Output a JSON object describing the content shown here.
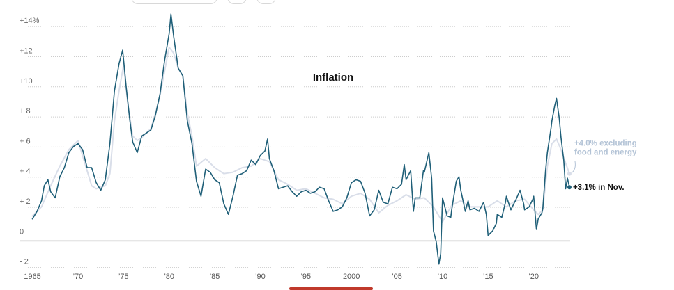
{
  "colors": {
    "headline": "#1f5f78",
    "core": "#d9dee9",
    "zero_line": "#bbbbbb",
    "grid": "#cccccc",
    "annotation_core": "#b3c3d6",
    "annotation_headline": "#111111"
  },
  "chart_data": {
    "type": "line",
    "title": "Inflation",
    "xlabel": "",
    "ylabel": "",
    "xlim": [
      1964.5,
      2024
    ],
    "ylim": [
      -2.8,
      15.3
    ],
    "grid": true,
    "x_ticks": [
      {
        "value": 1965,
        "label": "1965"
      },
      {
        "value": 1970,
        "label": "’70"
      },
      {
        "value": 1975,
        "label": "’75"
      },
      {
        "value": 1980,
        "label": "’80"
      },
      {
        "value": 1985,
        "label": "’85"
      },
      {
        "value": 1990,
        "label": "’90"
      },
      {
        "value": 1995,
        "label": "’95"
      },
      {
        "value": 2000,
        "label": "2000"
      },
      {
        "value": 2005,
        "label": "’05"
      },
      {
        "value": 2010,
        "label": "’10"
      },
      {
        "value": 2015,
        "label": "’15"
      },
      {
        "value": 2020,
        "label": "’20"
      }
    ],
    "y_ticks": [
      {
        "value": 14,
        "label": "+14%"
      },
      {
        "value": 12,
        "label": "+12"
      },
      {
        "value": 10,
        "label": "+10"
      },
      {
        "value": 8,
        "label": "+ 8"
      },
      {
        "value": 6,
        "label": "+ 6"
      },
      {
        "value": 4,
        "label": "+ 4"
      },
      {
        "value": 2,
        "label": "+ 2"
      },
      {
        "value": 0,
        "label": "0"
      },
      {
        "value": -2,
        "label": "- 2"
      }
    ],
    "series": [
      {
        "key": "core",
        "points": [
          [
            1965.0,
            1.2
          ],
          [
            1966.0,
            1.8
          ],
          [
            1967.0,
            3.2
          ],
          [
            1968.0,
            4.5
          ],
          [
            1969.0,
            5.6
          ],
          [
            1970.0,
            6.2
          ],
          [
            1971.0,
            4.2
          ],
          [
            1971.5,
            3.2
          ],
          [
            1972.0,
            3.0
          ],
          [
            1972.5,
            3.1
          ],
          [
            1973.0,
            3.2
          ],
          [
            1973.5,
            4.0
          ],
          [
            1974.0,
            7.5
          ],
          [
            1974.5,
            9.5
          ],
          [
            1975.0,
            11.2
          ],
          [
            1975.5,
            8.5
          ],
          [
            1976.0,
            6.5
          ],
          [
            1976.5,
            6.2
          ],
          [
            1977.0,
            6.4
          ],
          [
            1978.0,
            7.0
          ],
          [
            1978.5,
            8.0
          ],
          [
            1979.0,
            9.2
          ],
          [
            1979.5,
            10.8
          ],
          [
            1980.0,
            12.4
          ],
          [
            1980.5,
            12.0
          ],
          [
            1981.0,
            11.0
          ],
          [
            1981.5,
            10.5
          ],
          [
            1982.0,
            8.0
          ],
          [
            1982.5,
            6.5
          ],
          [
            1983.0,
            4.5
          ],
          [
            1984.0,
            5.0
          ],
          [
            1985.0,
            4.4
          ],
          [
            1986.0,
            4.0
          ],
          [
            1987.0,
            4.1
          ],
          [
            1988.0,
            4.4
          ],
          [
            1989.0,
            4.5
          ],
          [
            1990.0,
            5.0
          ],
          [
            1991.0,
            4.8
          ],
          [
            1991.5,
            4.2
          ],
          [
            1992.0,
            3.6
          ],
          [
            1993.0,
            3.3
          ],
          [
            1994.0,
            2.9
          ],
          [
            1995.0,
            3.0
          ],
          [
            1996.0,
            2.7
          ],
          [
            1997.0,
            2.4
          ],
          [
            1998.0,
            2.3
          ],
          [
            1999.0,
            2.0
          ],
          [
            2000.0,
            2.5
          ],
          [
            2001.0,
            2.7
          ],
          [
            2002.0,
            2.3
          ],
          [
            2003.0,
            1.4
          ],
          [
            2004.0,
            1.9
          ],
          [
            2005.0,
            2.2
          ],
          [
            2006.0,
            2.6
          ],
          [
            2007.0,
            2.3
          ],
          [
            2008.0,
            2.4
          ],
          [
            2009.0,
            1.8
          ],
          [
            2010.0,
            0.8
          ],
          [
            2011.0,
            1.9
          ],
          [
            2012.0,
            2.2
          ],
          [
            2013.0,
            1.8
          ],
          [
            2014.0,
            1.8
          ],
          [
            2015.0,
            1.8
          ],
          [
            2016.0,
            2.2
          ],
          [
            2017.0,
            1.8
          ],
          [
            2018.0,
            2.2
          ],
          [
            2019.0,
            2.3
          ],
          [
            2020.0,
            1.6
          ],
          [
            2020.5,
            1.3
          ],
          [
            2021.0,
            1.6
          ],
          [
            2021.5,
            4.5
          ],
          [
            2022.0,
            6.0
          ],
          [
            2022.5,
            6.3
          ],
          [
            2023.0,
            5.6
          ],
          [
            2023.5,
            4.7
          ],
          [
            2023.92,
            4.0
          ]
        ]
      },
      {
        "key": "headline",
        "points": [
          [
            1965.0,
            1.0
          ],
          [
            1965.5,
            1.5
          ],
          [
            1966.0,
            2.2
          ],
          [
            1966.3,
            3.2
          ],
          [
            1966.7,
            3.6
          ],
          [
            1967.0,
            2.8
          ],
          [
            1967.5,
            2.4
          ],
          [
            1968.0,
            3.8
          ],
          [
            1968.5,
            4.4
          ],
          [
            1969.0,
            5.4
          ],
          [
            1969.5,
            5.8
          ],
          [
            1970.0,
            6.0
          ],
          [
            1970.5,
            5.6
          ],
          [
            1971.0,
            4.4
          ],
          [
            1971.5,
            4.4
          ],
          [
            1972.0,
            3.4
          ],
          [
            1972.5,
            2.9
          ],
          [
            1973.0,
            3.6
          ],
          [
            1973.5,
            6.0
          ],
          [
            1974.0,
            9.5
          ],
          [
            1974.5,
            11.3
          ],
          [
            1974.9,
            12.2
          ],
          [
            1975.3,
            9.7
          ],
          [
            1975.7,
            7.5
          ],
          [
            1976.0,
            6.1
          ],
          [
            1976.5,
            5.4
          ],
          [
            1977.0,
            6.5
          ],
          [
            1977.5,
            6.7
          ],
          [
            1978.0,
            6.9
          ],
          [
            1978.5,
            7.9
          ],
          [
            1979.0,
            9.3
          ],
          [
            1979.5,
            11.5
          ],
          [
            1980.0,
            13.3
          ],
          [
            1980.2,
            14.6
          ],
          [
            1980.5,
            13.1
          ],
          [
            1981.0,
            11.0
          ],
          [
            1981.5,
            10.5
          ],
          [
            1982.0,
            7.5
          ],
          [
            1982.5,
            6.0
          ],
          [
            1983.0,
            3.5
          ],
          [
            1983.5,
            2.5
          ],
          [
            1984.0,
            4.3
          ],
          [
            1984.5,
            4.1
          ],
          [
            1985.0,
            3.6
          ],
          [
            1985.5,
            3.4
          ],
          [
            1986.0,
            2.0
          ],
          [
            1986.5,
            1.3
          ],
          [
            1987.0,
            2.5
          ],
          [
            1987.5,
            3.9
          ],
          [
            1988.0,
            4.0
          ],
          [
            1988.5,
            4.2
          ],
          [
            1989.0,
            4.9
          ],
          [
            1989.5,
            4.6
          ],
          [
            1990.0,
            5.2
          ],
          [
            1990.5,
            5.5
          ],
          [
            1990.8,
            6.3
          ],
          [
            1991.0,
            5.0
          ],
          [
            1991.5,
            4.2
          ],
          [
            1992.0,
            3.0
          ],
          [
            1992.5,
            3.1
          ],
          [
            1993.0,
            3.2
          ],
          [
            1993.5,
            2.8
          ],
          [
            1994.0,
            2.5
          ],
          [
            1994.5,
            2.8
          ],
          [
            1995.0,
            2.9
          ],
          [
            1995.5,
            2.7
          ],
          [
            1996.0,
            2.8
          ],
          [
            1996.5,
            3.1
          ],
          [
            1997.0,
            3.0
          ],
          [
            1997.5,
            2.2
          ],
          [
            1998.0,
            1.5
          ],
          [
            1998.5,
            1.6
          ],
          [
            1999.0,
            1.8
          ],
          [
            1999.5,
            2.4
          ],
          [
            2000.0,
            3.4
          ],
          [
            2000.5,
            3.6
          ],
          [
            2001.0,
            3.5
          ],
          [
            2001.5,
            2.7
          ],
          [
            2002.0,
            1.2
          ],
          [
            2002.5,
            1.6
          ],
          [
            2003.0,
            2.9
          ],
          [
            2003.5,
            2.1
          ],
          [
            2004.0,
            2.0
          ],
          [
            2004.5,
            3.1
          ],
          [
            2005.0,
            3.0
          ],
          [
            2005.5,
            3.3
          ],
          [
            2005.8,
            4.6
          ],
          [
            2006.0,
            3.6
          ],
          [
            2006.5,
            4.2
          ],
          [
            2006.8,
            1.5
          ],
          [
            2007.0,
            2.4
          ],
          [
            2007.5,
            2.4
          ],
          [
            2007.9,
            4.2
          ],
          [
            2008.0,
            4.1
          ],
          [
            2008.5,
            5.4
          ],
          [
            2008.8,
            3.7
          ],
          [
            2009.0,
            0.2
          ],
          [
            2009.3,
            -0.5
          ],
          [
            2009.6,
            -2.0
          ],
          [
            2009.8,
            -1.3
          ],
          [
            2010.0,
            2.4
          ],
          [
            2010.5,
            1.2
          ],
          [
            2010.9,
            1.1
          ],
          [
            2011.0,
            1.6
          ],
          [
            2011.5,
            3.5
          ],
          [
            2011.8,
            3.8
          ],
          [
            2012.0,
            2.9
          ],
          [
            2012.5,
            1.5
          ],
          [
            2012.8,
            2.2
          ],
          [
            2013.0,
            1.6
          ],
          [
            2013.5,
            1.7
          ],
          [
            2014.0,
            1.5
          ],
          [
            2014.5,
            2.1
          ],
          [
            2014.8,
            1.3
          ],
          [
            2015.0,
            -0.1
          ],
          [
            2015.5,
            0.2
          ],
          [
            2015.9,
            0.7
          ],
          [
            2016.0,
            1.3
          ],
          [
            2016.5,
            1.1
          ],
          [
            2016.9,
            2.1
          ],
          [
            2017.0,
            2.5
          ],
          [
            2017.5,
            1.6
          ],
          [
            2017.9,
            2.1
          ],
          [
            2018.0,
            2.2
          ],
          [
            2018.5,
            2.9
          ],
          [
            2018.9,
            2.0
          ],
          [
            2019.0,
            1.6
          ],
          [
            2019.5,
            1.8
          ],
          [
            2019.9,
            2.3
          ],
          [
            2020.0,
            2.5
          ],
          [
            2020.3,
            0.3
          ],
          [
            2020.5,
            1.0
          ],
          [
            2020.9,
            1.4
          ],
          [
            2021.0,
            1.7
          ],
          [
            2021.3,
            4.2
          ],
          [
            2021.5,
            5.4
          ],
          [
            2021.9,
            7.0
          ],
          [
            2022.0,
            7.5
          ],
          [
            2022.3,
            8.5
          ],
          [
            2022.5,
            9.0
          ],
          [
            2022.8,
            7.7
          ],
          [
            2023.0,
            6.4
          ],
          [
            2023.3,
            4.9
          ],
          [
            2023.5,
            3.0
          ],
          [
            2023.7,
            3.7
          ],
          [
            2023.92,
            3.1
          ]
        ]
      }
    ],
    "annotations": [
      {
        "series": "core",
        "lines": [
          "+4.0% excluding",
          "food and energy"
        ]
      },
      {
        "series": "headline",
        "lines": [
          "+3.1% in Nov."
        ]
      }
    ]
  }
}
